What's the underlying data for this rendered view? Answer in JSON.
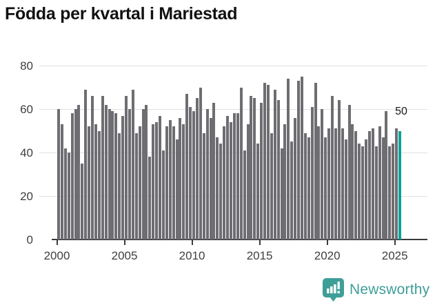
{
  "title": "Födda per kvartal i Mariestad",
  "annotation": {
    "label": "50"
  },
  "branding": {
    "logo_text": "Newsworthy",
    "brand_color": "#3E9E98"
  },
  "chart_data": {
    "type": "bar",
    "title": "Födda per kvartal i Mariestad",
    "x_unit": "quarter",
    "x_start": "2000-Q1",
    "x_end": "2025-Q2",
    "xlabel": "",
    "ylabel": "",
    "ylim": [
      0,
      80
    ],
    "y_ticks": [
      0,
      20,
      40,
      60,
      80
    ],
    "x_tick_labels": [
      "2000",
      "2005",
      "2010",
      "2015",
      "2020",
      "2025"
    ],
    "grid": "horizontal",
    "bar_color": "#6e6d72",
    "highlight_color": "#00a39a",
    "highlighted_bar": "2025-Q2",
    "highlighted_value_label": "50",
    "values": [
      60,
      53,
      42,
      40,
      58,
      60,
      62,
      35,
      69,
      52,
      66,
      53,
      50,
      66,
      62,
      60,
      59,
      58,
      49,
      57,
      66,
      60,
      69,
      49,
      52,
      60,
      62,
      38,
      53,
      54,
      57,
      41,
      52,
      55,
      52,
      46,
      56,
      53,
      67,
      61,
      59,
      65,
      70,
      49,
      60,
      56,
      63,
      47,
      44,
      52,
      57,
      54,
      58,
      58,
      70,
      41,
      53,
      66,
      65,
      44,
      63,
      72,
      71,
      49,
      69,
      64,
      42,
      53,
      74,
      45,
      56,
      73,
      75,
      49,
      47,
      61,
      72,
      52,
      60,
      47,
      51,
      66,
      51,
      64,
      51,
      46,
      62,
      53,
      50,
      44,
      43,
      46,
      50,
      51,
      43,
      52,
      47,
      59,
      43,
      44,
      51,
      50
    ]
  }
}
